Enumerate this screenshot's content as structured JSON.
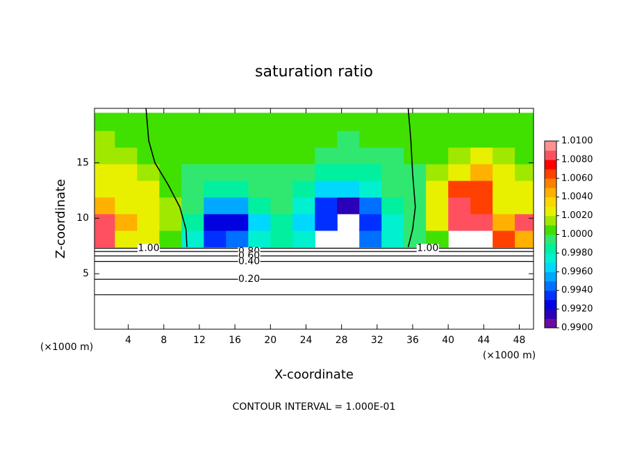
{
  "chart_data": {
    "type": "contour",
    "title": "saturation ratio",
    "x_label": "X-coordinate",
    "y_label": "Z-coordinate",
    "x_unit": "(×1000 m)",
    "y_unit": "(×1000 m)",
    "footer": "CONTOUR INTERVAL = 1.000E-01",
    "xlim": [
      0.2,
      49.6
    ],
    "ylim": [
      0,
      19.9
    ],
    "xticks": [
      4,
      8,
      12,
      16,
      20,
      24,
      28,
      32,
      36,
      40,
      44,
      48
    ],
    "yticks": [
      5,
      10,
      15
    ],
    "x": [
      1.25,
      3.75,
      6.25,
      8.75,
      11.25,
      13.75,
      16.25,
      18.75,
      21.25,
      23.75,
      26.25,
      28.75,
      31.25,
      33.75,
      36.25,
      38.75,
      41.25,
      43.75,
      46.25,
      48.75
    ],
    "z": [
      8.2,
      9.7,
      11.2,
      12.7,
      14.2,
      15.7,
      17.2,
      18.7
    ],
    "cell": [
      2.5,
      1.6
    ],
    "values": [
      [
        1.008,
        1.003,
        1.0025,
        1.001,
        0.997,
        0.993,
        0.994,
        0.997,
        0.998,
        0.997,
        null,
        null,
        0.994,
        0.997,
        0.999,
        1.001,
        null,
        null,
        1.007,
        1.005
      ],
      [
        1.009,
        1.004,
        1.003,
        1.0015,
        0.9985,
        0.992,
        0.992,
        0.996,
        0.998,
        0.996,
        0.993,
        null,
        0.993,
        0.997,
        0.9995,
        1.003,
        1.008,
        1.008,
        1.005,
        1.008
      ],
      [
        1.005,
        1.003,
        1.0025,
        1.0015,
        0.999,
        0.995,
        0.995,
        0.998,
        0.999,
        0.997,
        0.993,
        0.9915,
        0.994,
        0.998,
        0.9995,
        1.003,
        1.008,
        1.007,
        1.003,
        1.003
      ],
      [
        1.003,
        1.0025,
        1.002,
        1.001,
        0.9995,
        0.998,
        0.998,
        0.999,
        0.999,
        0.9985,
        0.996,
        0.996,
        0.997,
        0.999,
        0.9998,
        1.002,
        1.006,
        1.006,
        1.003,
        1.002
      ],
      [
        1.002,
        1.002,
        1.0015,
        1.0008,
        0.9998,
        0.9995,
        0.9995,
        0.9998,
        0.9998,
        0.9995,
        0.9985,
        0.998,
        0.9988,
        0.9996,
        0.9999,
        1.0015,
        1.003,
        1.004,
        1.002,
        1.0015
      ],
      [
        1.0015,
        1.0012,
        1.001,
        1.0005,
        1.0002,
        1.0,
        1.0,
        1.0002,
        1.0002,
        1.0,
        0.9995,
        0.9992,
        0.9995,
        0.9998,
        1.0,
        1.001,
        1.0015,
        1.002,
        1.0015,
        1.001
      ],
      [
        1.0012,
        1.001,
        1.0008,
        1.0005,
        1.0003,
        1.0003,
        1.0003,
        1.0003,
        1.0003,
        1.0003,
        1.0,
        0.9998,
        1.0,
        1.0,
        1.0003,
        1.0008,
        1.001,
        1.001,
        1.001,
        1.0008
      ],
      [
        1.0008,
        1.0008,
        1.0006,
        1.0005,
        1.0004,
        1.0004,
        1.0004,
        1.0004,
        1.0004,
        1.0004,
        1.0003,
        1.0003,
        1.0003,
        1.0003,
        1.0004,
        1.0006,
        1.0006,
        1.0006,
        1.0006,
        1.0006
      ]
    ],
    "color_levels": [
      0.99,
      1.01
    ],
    "colors": [
      "#6a0ca0",
      "#2a00b8",
      "#0000e0",
      "#0030ff",
      "#0070ff",
      "#00a8ff",
      "#00d8ff",
      "#00f0d0",
      "#00f0a0",
      "#30e870",
      "#40e000",
      "#a0e800",
      "#e8f000",
      "#f8d800",
      "#ffb000",
      "#ff8000",
      "#ff4000",
      "#ff0000",
      "#ff5060",
      "#ff9090"
    ],
    "colorbar_ticks": [
      {
        "value": 0.99,
        "label": "0.9900"
      },
      {
        "value": 0.992,
        "label": "0.9920"
      },
      {
        "value": 0.994,
        "label": "0.9940"
      },
      {
        "value": 0.996,
        "label": "0.9960"
      },
      {
        "value": 0.998,
        "label": "0.9980"
      },
      {
        "value": 1.0,
        "label": "1.0000"
      },
      {
        "value": 1.002,
        "label": "1.0020"
      },
      {
        "value": 1.004,
        "label": "1.0040"
      },
      {
        "value": 1.006,
        "label": "1.0060"
      },
      {
        "value": 1.008,
        "label": "1.0080"
      },
      {
        "value": 1.01,
        "label": "1.0100"
      }
    ],
    "contour_lines": [
      {
        "level": {
          "value": 1.0,
          "label": "1.00"
        },
        "z": 7.3
      },
      {
        "level": {
          "value": 0.8,
          "label": "0.80"
        },
        "z": 7.0
      },
      {
        "level": {
          "value": 0.6,
          "label": "0.60"
        },
        "z": 6.6
      },
      {
        "level": {
          "value": 0.4,
          "label": "0.40"
        },
        "z": 6.1
      },
      {
        "level": {
          "value": 0.2,
          "label": "0.20"
        },
        "z": 4.5
      },
      {
        "z": 3.1
      }
    ],
    "unit_contours": [
      {
        "x": [
          6.0,
          6.3,
          7.0,
          8.5,
          9.8,
          10.5,
          10.6
        ],
        "z": [
          19.9,
          17,
          15,
          13,
          11,
          9,
          7.4
        ]
      },
      {
        "x": [
          35.5,
          35.8,
          36.0,
          36.3,
          36.0,
          35.5
        ],
        "z": [
          19.9,
          17,
          14,
          11,
          9,
          7.4
        ]
      }
    ]
  }
}
